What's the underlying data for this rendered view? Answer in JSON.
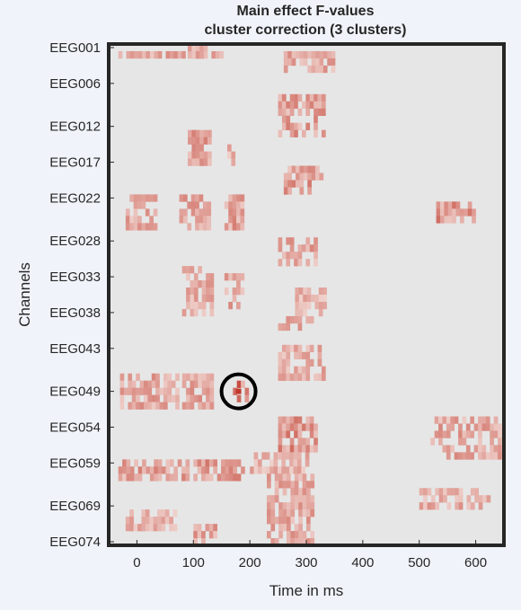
{
  "chart_data": {
    "type": "heatmap",
    "title_lines": [
      "Main effect F-values",
      "cluster correction (3 clusters)"
    ],
    "xlabel": "Time in ms",
    "ylabel": "Channels",
    "xlim": [
      -50,
      650
    ],
    "xticks": [
      0,
      100,
      200,
      300,
      400,
      500,
      600
    ],
    "ylim_channels": [
      "EEG001",
      "EEG074"
    ],
    "yticks": [
      {
        "label": "EEG001",
        "index": 1
      },
      {
        "label": "EEG006",
        "index": 6
      },
      {
        "label": "EEG012",
        "index": 12
      },
      {
        "label": "EEG017",
        "index": 17
      },
      {
        "label": "EEG022",
        "index": 22
      },
      {
        "label": "EEG028",
        "index": 28
      },
      {
        "label": "EEG033",
        "index": 33
      },
      {
        "label": "EEG038",
        "index": 38
      },
      {
        "label": "EEG043",
        "index": 43
      },
      {
        "label": "EEG049",
        "index": 49
      },
      {
        "label": "EEG054",
        "index": 54
      },
      {
        "label": "EEG059",
        "index": 59
      },
      {
        "label": "EEG069",
        "index": 65
      },
      {
        "label": "EEG074",
        "index": 70
      }
    ],
    "n_rows": 70,
    "background_color": "#e6e6e6",
    "colormap": [
      "#f5e3df",
      "#c0392b"
    ],
    "grid": false,
    "clusters": [
      {
        "rows": [
          2,
          2
        ],
        "t": [
          -40,
          80
        ],
        "peak": 0.55
      },
      {
        "rows": [
          2,
          2
        ],
        "t": [
          90,
          150
        ],
        "peak": 0.75
      },
      {
        "rows": [
          2,
          4
        ],
        "t": [
          260,
          350
        ],
        "peak": 0.55
      },
      {
        "rows": [
          1,
          2
        ],
        "t": [
          90,
          130
        ],
        "peak": 0.6
      },
      {
        "rows": [
          8,
          13
        ],
        "t": [
          250,
          330
        ],
        "peak": 0.6
      },
      {
        "rows": [
          13,
          17
        ],
        "t": [
          90,
          130
        ],
        "peak": 0.6
      },
      {
        "rows": [
          15,
          17
        ],
        "t": [
          160,
          180
        ],
        "peak": 0.45
      },
      {
        "rows": [
          18,
          21
        ],
        "t": [
          260,
          330
        ],
        "peak": 0.65
      },
      {
        "rows": [
          22,
          26
        ],
        "t": [
          -20,
          30
        ],
        "peak": 0.55
      },
      {
        "rows": [
          22,
          26
        ],
        "t": [
          75,
          125
        ],
        "peak": 0.6
      },
      {
        "rows": [
          22,
          26
        ],
        "t": [
          155,
          185
        ],
        "peak": 0.6
      },
      {
        "rows": [
          23,
          25
        ],
        "t": [
          530,
          600
        ],
        "peak": 0.7
      },
      {
        "rows": [
          28,
          31
        ],
        "t": [
          250,
          320
        ],
        "peak": 0.55
      },
      {
        "rows": [
          32,
          38
        ],
        "t": [
          80,
          130
        ],
        "peak": 0.5
      },
      {
        "rows": [
          33,
          37
        ],
        "t": [
          155,
          190
        ],
        "peak": 0.55
      },
      {
        "rows": [
          35,
          38
        ],
        "t": [
          280,
          330
        ],
        "peak": 0.45
      },
      {
        "rows": [
          39,
          40
        ],
        "t": [
          250,
          310
        ],
        "peak": 0.5
      },
      {
        "rows": [
          43,
          47
        ],
        "t": [
          250,
          330
        ],
        "peak": 0.5
      },
      {
        "rows": [
          47,
          51
        ],
        "t": [
          -30,
          70
        ],
        "peak": 0.55
      },
      {
        "rows": [
          47,
          51
        ],
        "t": [
          80,
          130
        ],
        "peak": 0.55
      },
      {
        "rows": [
          48,
          50
        ],
        "t": [
          170,
          195
        ],
        "peak": 1.0
      },
      {
        "rows": [
          53,
          57
        ],
        "t": [
          250,
          320
        ],
        "peak": 0.7
      },
      {
        "rows": [
          53,
          58
        ],
        "t": [
          520,
          645
        ],
        "peak": 0.55
      },
      {
        "rows": [
          59,
          61
        ],
        "t": [
          -40,
          90
        ],
        "peak": 0.6
      },
      {
        "rows": [
          59,
          61
        ],
        "t": [
          100,
          190
        ],
        "peak": 0.65
      },
      {
        "rows": [
          58,
          60
        ],
        "t": [
          200,
          300
        ],
        "peak": 0.45
      },
      {
        "rows": [
          61,
          70
        ],
        "t": [
          230,
          310
        ],
        "peak": 0.55
      },
      {
        "rows": [
          63,
          65
        ],
        "t": [
          500,
          620
        ],
        "peak": 0.5
      },
      {
        "rows": [
          66,
          68
        ],
        "t": [
          -20,
          70
        ],
        "peak": 0.45
      },
      {
        "rows": [
          68,
          70
        ],
        "t": [
          100,
          140
        ],
        "peak": 0.55
      }
    ],
    "highlight": {
      "channel_index": 49,
      "t": 180,
      "marker": "circle",
      "color": "#000000"
    }
  }
}
